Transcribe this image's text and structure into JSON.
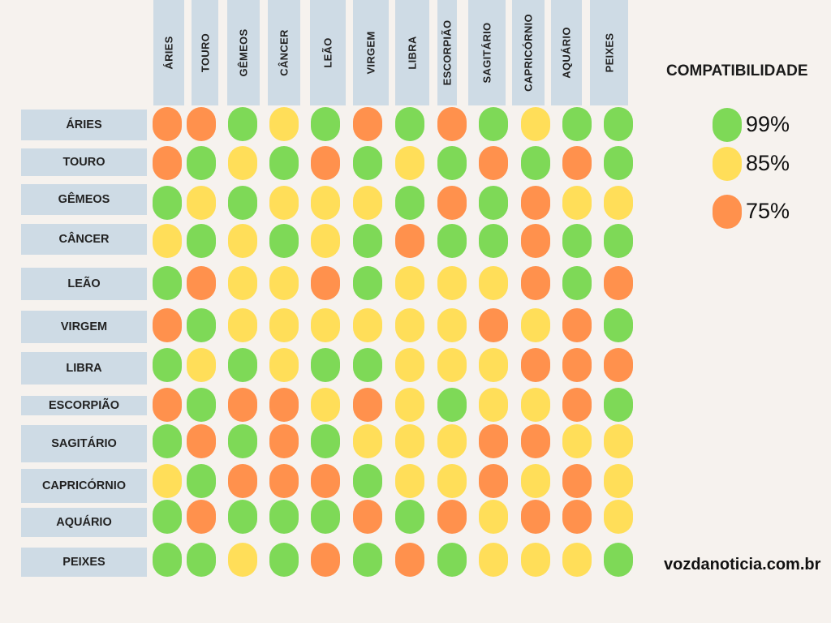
{
  "chart_data": {
    "type": "heatmap",
    "signs": [
      "ÁRIES",
      "TOURO",
      "GÊMEOS",
      "CÂNCER",
      "LEÃO",
      "VIRGEM",
      "LIBRA",
      "ESCORPIÃO",
      "SAGITÁRIO",
      "CAPRICÓRNIO",
      "AQUÁRIO",
      "PEIXES"
    ],
    "rows": [
      "ÁRIES",
      "TOURO",
      "GÊMEOS",
      "CÂNCER",
      "LEÃO",
      "VIRGEM",
      "LIBRA",
      "ESCORPIÃO",
      "SAGITÁRIO",
      "CAPRICÓRNIO",
      "AQUÁRIO",
      "PEIXES"
    ],
    "columns": [
      "ÁRIES",
      "TOURO",
      "GÊMEOS",
      "CÂNCER",
      "LEÃO",
      "VIRGEM",
      "LIBRA",
      "ESCORPIÃO",
      "SAGITÁRIO",
      "CAPRICÓRNIO",
      "AQUÁRIO",
      "PEIXES"
    ],
    "values": [
      [
        75,
        75,
        99,
        85,
        99,
        75,
        99,
        75,
        99,
        85,
        99,
        99
      ],
      [
        75,
        99,
        85,
        99,
        75,
        99,
        85,
        99,
        75,
        99,
        75,
        99
      ],
      [
        99,
        85,
        99,
        85,
        85,
        85,
        99,
        75,
        99,
        75,
        85,
        85
      ],
      [
        85,
        99,
        85,
        99,
        85,
        99,
        75,
        99,
        99,
        75,
        99,
        99
      ],
      [
        99,
        75,
        85,
        85,
        75,
        99,
        85,
        85,
        85,
        75,
        99,
        75
      ],
      [
        75,
        99,
        85,
        85,
        85,
        85,
        85,
        85,
        75,
        85,
        75,
        99
      ],
      [
        99,
        85,
        99,
        85,
        99,
        99,
        85,
        85,
        85,
        75,
        75,
        75
      ],
      [
        75,
        99,
        75,
        75,
        85,
        75,
        85,
        99,
        85,
        85,
        75,
        99
      ],
      [
        99,
        75,
        99,
        75,
        99,
        85,
        85,
        85,
        75,
        75,
        85,
        85
      ],
      [
        85,
        99,
        75,
        75,
        75,
        99,
        85,
        85,
        75,
        85,
        75,
        85
      ],
      [
        99,
        75,
        99,
        99,
        99,
        75,
        99,
        75,
        85,
        75,
        75,
        85
      ],
      [
        99,
        99,
        85,
        99,
        75,
        99,
        75,
        99,
        85,
        85,
        85,
        99
      ]
    ],
    "legend_title": "COMPATIBILIDADE",
    "legend": [
      {
        "label": "99%",
        "value": 99,
        "color": "#7ed957"
      },
      {
        "label": "85%",
        "value": 85,
        "color": "#ffde59"
      },
      {
        "label": "75%",
        "value": 75,
        "color": "#ff914d"
      }
    ],
    "legend_position": "right"
  },
  "source": "vozdanoticia.com.br"
}
